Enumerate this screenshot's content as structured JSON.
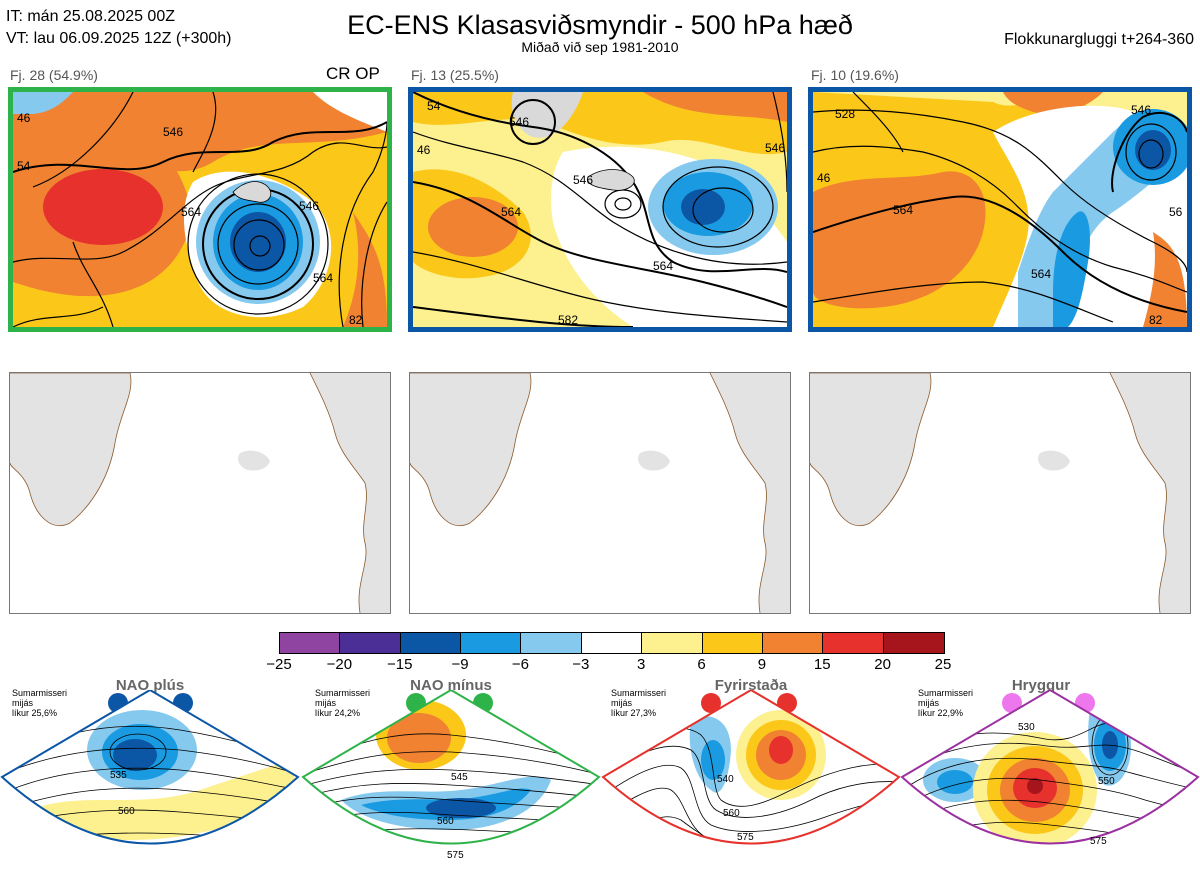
{
  "header": {
    "it_line": "IT: mán 25.08.2025 00Z",
    "vt_line": "VT: lau 06.09.2025 12Z  (+300h)",
    "title": "EC-ENS Klasasviðsmyndir - 500 hPa hæð",
    "subtitle": "Miðað við sep 1981-2010",
    "window": "Flokkunargluggi t+264-360"
  },
  "panels": [
    {
      "label": "Fj. 28 (54.9%)",
      "tag": "CR OP",
      "border": "#2eb34a"
    },
    {
      "label": "Fj. 13 (25.5%)",
      "tag": "",
      "border": "#0c56a6"
    },
    {
      "label": "Fj. 10 (19.6%)",
      "tag": "",
      "border": "#0c56a6"
    }
  ],
  "contour_labels": {
    "p1": [
      "46",
      "546",
      "54",
      "564",
      "546",
      "564",
      "82"
    ],
    "p2": [
      "54",
      "546",
      "46",
      "564",
      "564",
      "582",
      "546",
      "546"
    ],
    "p3": [
      "528",
      "546",
      "46",
      "564",
      "564",
      "56",
      "82"
    ]
  },
  "chart_data": {
    "type": "heatmap",
    "title": "EC-ENS Klasasviðsmyndir - 500 hPa hæð",
    "colorbar": {
      "ticks": [
        "−25",
        "−20",
        "−15",
        "−9",
        "−6",
        "−3",
        "3",
        "6",
        "9",
        "15",
        "20",
        "25"
      ],
      "colors": [
        "#8e44a0",
        "#4b2e96",
        "#0c56a6",
        "#1a9ae0",
        "#86c9ee",
        "#ffffff",
        "#fdf08f",
        "#fbc81a",
        "#f08232",
        "#e6312c",
        "#a6141c"
      ]
    },
    "clusters": [
      {
        "name": "Fj. 28",
        "members": 28,
        "percent": 54.9
      },
      {
        "name": "Fj. 13",
        "members": 13,
        "percent": 25.5
      },
      {
        "name": "Fj. 10",
        "members": 10,
        "percent": 19.6
      }
    ]
  },
  "regimes": [
    {
      "name": "NAO plús",
      "note": [
        "Sumarmisseri",
        "mijás",
        "líkur 25,6%"
      ],
      "color": "#0c56a6",
      "labels": [
        "535",
        "560"
      ]
    },
    {
      "name": "NAO mínus",
      "note": [
        "Sumarmisseri",
        "mijás",
        "líkur 24,2%"
      ],
      "color": "#2eb34a",
      "labels": [
        "545",
        "560",
        "575"
      ]
    },
    {
      "name": "Fyrirstaða",
      "note": [
        "Sumarmisseri",
        "mijás",
        "líkur 27,3%"
      ],
      "color": "#e6312c",
      "labels": [
        "540",
        "560",
        "575"
      ]
    },
    {
      "name": "Hryggur",
      "note": [
        "Sumarmisseri",
        "mijás",
        "líkur 22,9%"
      ],
      "color": "#ee77ee",
      "labels": [
        "530",
        "550",
        "575"
      ]
    }
  ]
}
